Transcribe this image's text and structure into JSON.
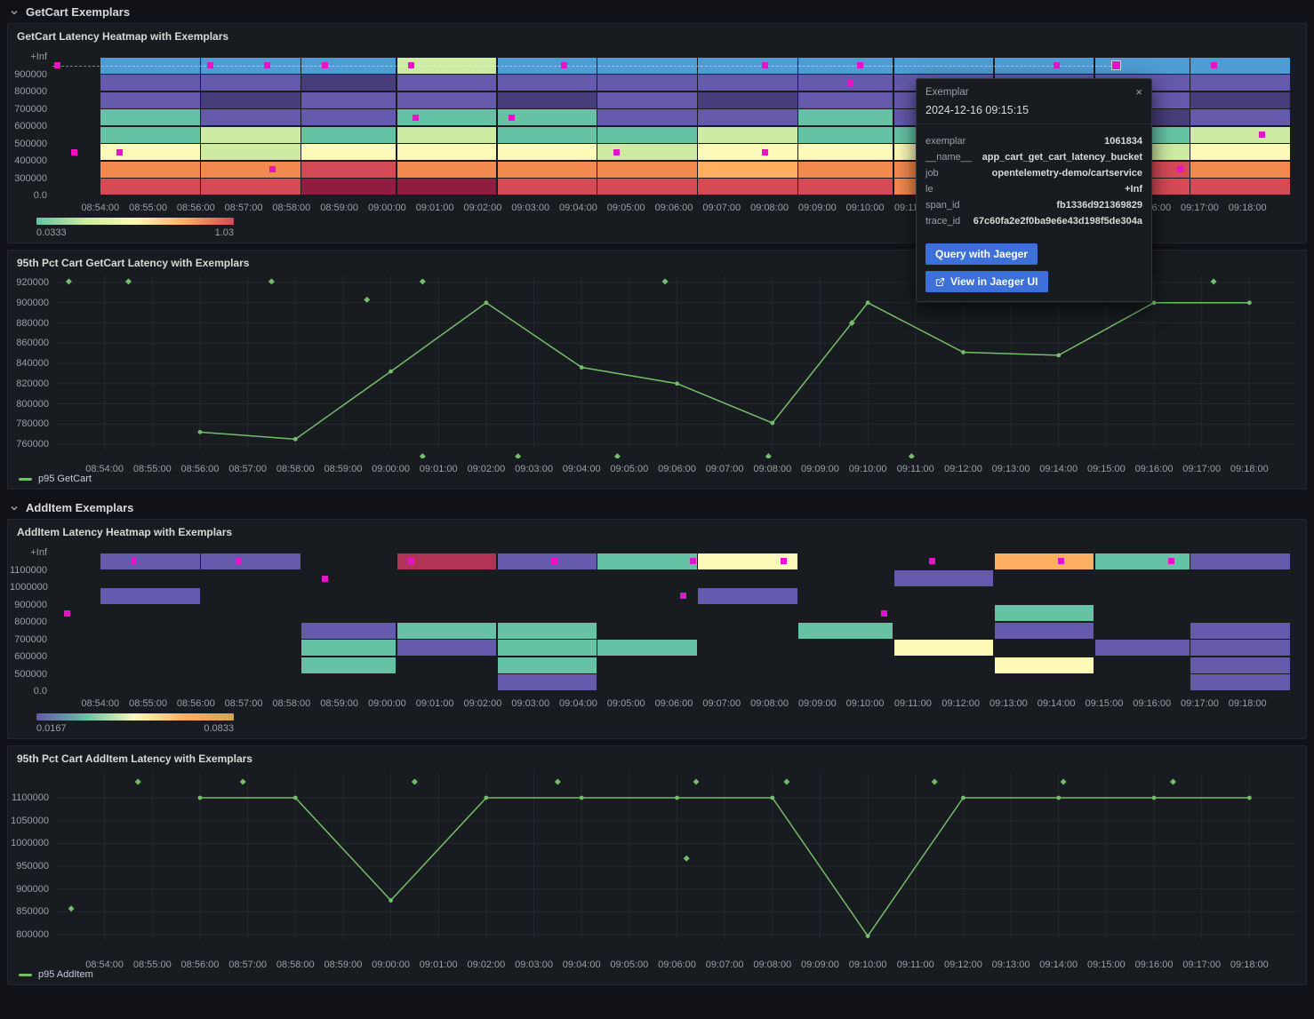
{
  "page_bg": "#111217",
  "time_origin": "08:53:00",
  "times": [
    "08:54:00",
    "08:55:00",
    "08:56:00",
    "08:57:00",
    "08:58:00",
    "08:59:00",
    "09:00:00",
    "09:01:00",
    "09:02:00",
    "09:03:00",
    "09:04:00",
    "09:05:00",
    "09:06:00",
    "09:07:00",
    "09:08:00",
    "09:09:00",
    "09:10:00",
    "09:11:00",
    "09:12:00",
    "09:13:00",
    "09:14:00",
    "09:15:00",
    "09:16:00",
    "09:17:00",
    "09:18:00"
  ],
  "sections": [
    {
      "title": "GetCart Exemplars"
    },
    {
      "title": "AddItem Exemplars"
    }
  ],
  "series_color": "#73bf69",
  "exemplar_color": "#e614c9",
  "palette": {
    "b": "#4f9bd3",
    "p": "#6459aa",
    "dp": "#463d7a",
    "t": "#66c2a5",
    "pg": "#cdeba2",
    "py": "#fdf9b8",
    "o": "#f2894f",
    "lo": "#fdae61",
    "r": "#d44a55",
    "dr": "#8f1d3f",
    "cr": "#b33357"
  },
  "chart_data": [
    {
      "type": "heatmap",
      "title": "GetCart Latency Heatmap with Exemplars",
      "y_buckets": [
        "+Inf",
        "900000",
        "800000",
        "700000",
        "600000",
        "500000",
        "400000",
        "300000",
        "0.0"
      ],
      "segment_bounds": [
        1.0,
        3.1,
        5.2,
        7.2,
        9.3,
        11.4,
        13.5,
        15.6,
        17.6,
        19.7,
        21.8,
        23.8,
        25.9
      ],
      "rows": [
        [
          "b",
          "b",
          "b",
          "pg",
          "b",
          "b",
          "b",
          "b",
          "b",
          "b",
          "b",
          "b"
        ],
        [
          "p",
          "p",
          "dp",
          "p",
          "p",
          "p",
          "p",
          "p",
          "p",
          "p",
          "p",
          "p"
        ],
        [
          "p",
          "dp",
          "p",
          "p",
          "dp",
          "p",
          "dp",
          "p",
          "p",
          "t",
          "p",
          "dp"
        ],
        [
          "t",
          "p",
          "p",
          "t",
          "t",
          "p",
          "p",
          "t",
          "p",
          "p",
          "dp",
          "p"
        ],
        [
          "t",
          "pg",
          "t",
          "pg",
          "t",
          "t",
          "pg",
          "t",
          "t",
          "pg",
          "t",
          "pg"
        ],
        [
          "py",
          "pg",
          "py",
          "py",
          "py",
          "pg",
          "py",
          "py",
          "py",
          "py",
          "pg",
          "py"
        ],
        [
          "o",
          "o",
          "r",
          "o",
          "o",
          "o",
          "lo",
          "o",
          "o",
          "o",
          "r",
          "o"
        ],
        [
          "r",
          "r",
          "dr",
          "dr",
          "r",
          "r",
          "r",
          "r",
          "o",
          "r",
          "r",
          "r"
        ]
      ],
      "exemplars": [
        [
          "08:53:06",
          0
        ],
        [
          "08:56:18",
          0
        ],
        [
          "08:57:30",
          0
        ],
        [
          "08:58:42",
          0
        ],
        [
          "09:00:30",
          0
        ],
        [
          "09:03:42",
          0
        ],
        [
          "09:07:54",
          0
        ],
        [
          "09:09:54",
          0
        ],
        [
          "09:14:00",
          0
        ],
        [
          "09:17:18",
          0
        ],
        [
          "09:09:42",
          1
        ],
        [
          "09:00:36",
          3
        ],
        [
          "09:02:36",
          3
        ],
        [
          "09:18:18",
          4
        ],
        [
          "08:53:27",
          5
        ],
        [
          "08:54:24",
          5
        ],
        [
          "09:04:48",
          5
        ],
        [
          "09:07:54",
          5
        ],
        [
          "08:57:36",
          6
        ],
        [
          "09:16:36",
          6
        ]
      ],
      "anchor": {
        "time": "09:15:15",
        "row": 0
      },
      "scale_min": "0.0333",
      "scale_max": "1.03",
      "scale_gradient": [
        "#66c2a5",
        "#cdeba2",
        "#fdf9b8",
        "#fdae61",
        "#d44a55"
      ]
    },
    {
      "type": "line",
      "title": "95th Pct Cart GetCart Latency with Exemplars",
      "legend": "p95 GetCart",
      "y_ticks": [
        920000,
        900000,
        880000,
        860000,
        840000,
        820000,
        800000,
        780000,
        760000
      ],
      "ylim": [
        745000,
        928000
      ],
      "points": [
        {
          "t": "08:56:00",
          "v": 772000
        },
        {
          "t": "08:58:00",
          "v": 765000
        },
        {
          "t": "09:00:00",
          "v": 832000
        },
        {
          "t": "09:02:00",
          "v": 900000
        },
        {
          "t": "09:04:00",
          "v": 836000
        },
        {
          "t": "09:06:00",
          "v": 820000
        },
        {
          "t": "09:08:00",
          "v": 781000
        },
        {
          "t": "09:10:00",
          "v": 900000
        },
        {
          "t": "09:12:00",
          "v": 851000
        },
        {
          "t": "09:14:00",
          "v": 848000
        },
        {
          "t": "09:16:00",
          "v": 900000
        },
        {
          "t": "09:18:00",
          "v": 900000
        }
      ],
      "exemplars": [
        [
          "08:53:15",
          921000
        ],
        [
          "08:54:30",
          921000
        ],
        [
          "08:57:30",
          921000
        ],
        [
          "08:59:30",
          903000
        ],
        [
          "09:00:40",
          921000
        ],
        [
          "09:05:45",
          921000
        ],
        [
          "09:09:40",
          880000
        ],
        [
          "09:17:15",
          921000
        ],
        [
          "09:00:40",
          748000
        ],
        [
          "09:02:40",
          748000
        ],
        [
          "09:04:45",
          748000
        ],
        [
          "09:07:55",
          748000
        ],
        [
          "09:10:55",
          748000
        ]
      ]
    },
    {
      "type": "heatmap",
      "title": "AddItem Latency Heatmap with Exemplars",
      "y_buckets": [
        "+Inf",
        "1100000",
        "1000000",
        "900000",
        "800000",
        "700000",
        "600000",
        "500000",
        "0.0"
      ],
      "cells": [
        {
          "r": 0,
          "m0": 1.0,
          "m1": 3.1,
          "c": "p"
        },
        {
          "r": 0,
          "m0": 3.1,
          "m1": 5.2,
          "c": "p"
        },
        {
          "r": 0,
          "m0": 7.2,
          "m1": 9.3,
          "c": "cr"
        },
        {
          "r": 0,
          "m0": 9.3,
          "m1": 11.4,
          "c": "p"
        },
        {
          "r": 0,
          "m0": 11.4,
          "m1": 13.5,
          "c": "t"
        },
        {
          "r": 0,
          "m0": 13.5,
          "m1": 15.6,
          "c": "py"
        },
        {
          "r": 0,
          "m0": 19.7,
          "m1": 21.8,
          "c": "lo"
        },
        {
          "r": 0,
          "m0": 21.8,
          "m1": 23.8,
          "c": "t"
        },
        {
          "r": 0,
          "m0": 23.8,
          "m1": 25.9,
          "c": "p"
        },
        {
          "r": 1,
          "m0": 17.6,
          "m1": 19.7,
          "c": "p"
        },
        {
          "r": 2,
          "m0": 1.0,
          "m1": 3.1,
          "c": "p"
        },
        {
          "r": 2,
          "m0": 13.5,
          "m1": 15.6,
          "c": "p"
        },
        {
          "r": 3,
          "m0": 19.7,
          "m1": 21.8,
          "c": "t"
        },
        {
          "r": 4,
          "m0": 5.2,
          "m1": 7.2,
          "c": "p"
        },
        {
          "r": 4,
          "m0": 7.2,
          "m1": 9.3,
          "c": "t"
        },
        {
          "r": 4,
          "m0": 9.3,
          "m1": 11.4,
          "c": "t"
        },
        {
          "r": 4,
          "m0": 15.6,
          "m1": 17.6,
          "c": "t"
        },
        {
          "r": 4,
          "m0": 19.7,
          "m1": 21.8,
          "c": "p"
        },
        {
          "r": 4,
          "m0": 23.8,
          "m1": 25.9,
          "c": "p"
        },
        {
          "r": 5,
          "m0": 5.2,
          "m1": 7.2,
          "c": "t"
        },
        {
          "r": 5,
          "m0": 7.2,
          "m1": 9.3,
          "c": "p"
        },
        {
          "r": 5,
          "m0": 9.3,
          "m1": 11.4,
          "c": "t"
        },
        {
          "r": 5,
          "m0": 11.4,
          "m1": 13.5,
          "c": "t"
        },
        {
          "r": 5,
          "m0": 17.6,
          "m1": 19.7,
          "c": "py"
        },
        {
          "r": 5,
          "m0": 21.8,
          "m1": 23.8,
          "c": "p"
        },
        {
          "r": 5,
          "m0": 23.8,
          "m1": 25.9,
          "c": "p"
        },
        {
          "r": 6,
          "m0": 5.2,
          "m1": 7.2,
          "c": "t"
        },
        {
          "r": 6,
          "m0": 9.3,
          "m1": 11.4,
          "c": "t"
        },
        {
          "r": 6,
          "m0": 19.7,
          "m1": 21.8,
          "c": "py"
        },
        {
          "r": 6,
          "m0": 23.8,
          "m1": 25.9,
          "c": "p"
        },
        {
          "r": 7,
          "m0": 9.3,
          "m1": 11.4,
          "c": "p"
        },
        {
          "r": 7,
          "m0": 23.8,
          "m1": 25.9,
          "c": "p"
        }
      ],
      "exemplars": [
        [
          "08:54:42",
          0
        ],
        [
          "08:56:54",
          0
        ],
        [
          "09:00:30",
          0
        ],
        [
          "09:03:30",
          0
        ],
        [
          "09:06:24",
          0
        ],
        [
          "09:08:18",
          0
        ],
        [
          "09:11:24",
          0
        ],
        [
          "09:14:06",
          0
        ],
        [
          "09:16:24",
          0
        ],
        [
          "08:58:42",
          1
        ],
        [
          "09:06:12",
          2
        ],
        [
          "08:53:18",
          3
        ],
        [
          "09:10:24",
          3
        ]
      ],
      "scale_min": "0.0167",
      "scale_max": "0.0833",
      "scale_gradient": [
        "#6459aa",
        "#66c2a5",
        "#fdf9b8",
        "#fdae61",
        "#d4a455"
      ]
    },
    {
      "type": "line",
      "title": "95th Pct Cart AddItem Latency with Exemplars",
      "legend": "p95 AddItem",
      "y_ticks": [
        1100000,
        1050000,
        1000000,
        950000,
        900000,
        850000,
        800000
      ],
      "ylim": [
        760000,
        1150000
      ],
      "points": [
        {
          "t": "08:56:00",
          "v": 1100000
        },
        {
          "t": "08:58:00",
          "v": 1100000
        },
        {
          "t": "09:00:00",
          "v": 875000
        },
        {
          "t": "09:02:00",
          "v": 1100000
        },
        {
          "t": "09:04:00",
          "v": 1100000
        },
        {
          "t": "09:06:00",
          "v": 1100000
        },
        {
          "t": "09:08:00",
          "v": 1100000
        },
        {
          "t": "09:10:00",
          "v": 797000
        },
        {
          "t": "09:12:00",
          "v": 1100000
        },
        {
          "t": "09:14:00",
          "v": 1100000
        },
        {
          "t": "09:16:00",
          "v": 1100000
        },
        {
          "t": "09:18:00",
          "v": 1100000
        }
      ],
      "exemplars": [
        [
          "08:54:42",
          1135000
        ],
        [
          "08:56:54",
          1135000
        ],
        [
          "09:00:30",
          1135000
        ],
        [
          "09:03:30",
          1135000
        ],
        [
          "09:06:24",
          1135000
        ],
        [
          "09:08:18",
          1135000
        ],
        [
          "09:11:24",
          1135000
        ],
        [
          "09:14:06",
          1135000
        ],
        [
          "09:16:24",
          1135000
        ],
        [
          "08:53:18",
          857000
        ],
        [
          "09:06:12",
          967000
        ]
      ]
    }
  ],
  "tooltip": {
    "title": "Exemplar",
    "close_label": "×",
    "timestamp": "2024-12-16 09:15:15",
    "fields": [
      {
        "label": "exemplar",
        "value": "1061834"
      },
      {
        "label": "__name__",
        "value": "app_cart_get_cart_latency_bucket"
      },
      {
        "label": "job",
        "value": "opentelemetry-demo/cartservice"
      },
      {
        "label": "le",
        "value": "+Inf"
      },
      {
        "label": "span_id",
        "value": "fb1336d921369829"
      },
      {
        "label": "trace_id",
        "value": "67c60fa2e2f0ba9e6e43d198f5de304a"
      }
    ],
    "buttons": [
      {
        "label": "Query with Jaeger"
      },
      {
        "label": "View in Jaeger UI",
        "icon": "external-link-icon"
      }
    ]
  }
}
